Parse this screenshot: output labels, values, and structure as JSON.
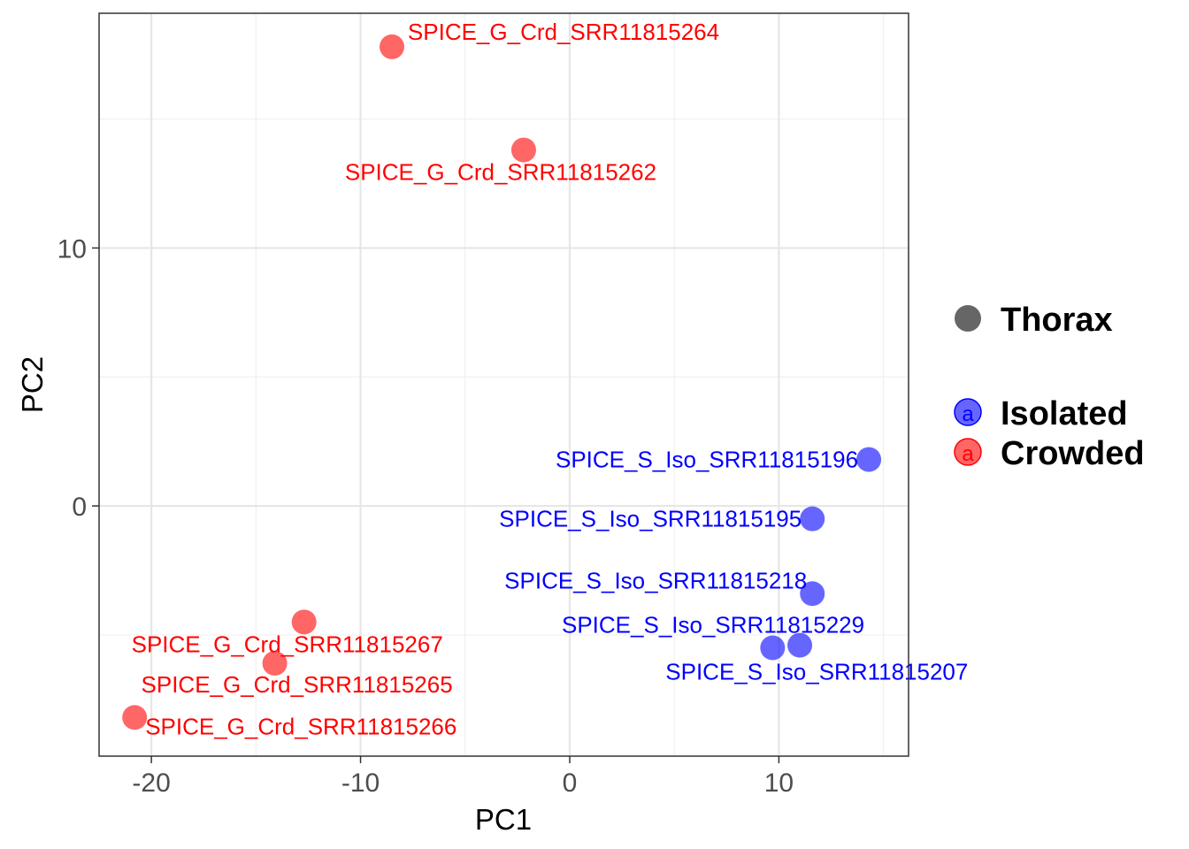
{
  "chart_data": {
    "type": "scatter",
    "title": "",
    "xlabel": "PC1",
    "ylabel": "PC2",
    "xlim": [
      -22.5,
      16.2
    ],
    "ylim": [
      -9.7,
      19.1
    ],
    "xticks": [
      -20,
      -10,
      0,
      10
    ],
    "yticks": [
      0,
      10
    ],
    "grid": true,
    "colors": {
      "Isolated": "#0000ff",
      "Crowded": "#ff0000",
      "shape_key": "#666666"
    },
    "legend": {
      "position": "right",
      "shape_title": "Thorax",
      "color_entries": [
        {
          "key": "Isolated",
          "label": "Isolated",
          "glyph": "a"
        },
        {
          "key": "Crowded",
          "label": "Crowded",
          "glyph": "a"
        }
      ]
    },
    "series": [
      {
        "name": "Isolated",
        "points": [
          {
            "label": "SPICE_S_Iso_SRR11815196",
            "x": 14.3,
            "y": 1.8,
            "label_side": "left"
          },
          {
            "label": "SPICE_S_Iso_SRR11815195",
            "x": 11.6,
            "y": -0.5,
            "label_side": "left"
          },
          {
            "label": "SPICE_S_Iso_SRR11815218",
            "x": 11.6,
            "y": -3.4,
            "label_side": "left-up"
          },
          {
            "label": "SPICE_S_Iso_SRR11815229",
            "x": 11.0,
            "y": -5.4,
            "label_side": "above"
          },
          {
            "label": "SPICE_S_Iso_SRR11815207",
            "x": 9.7,
            "y": -5.5,
            "label_side": "below"
          }
        ]
      },
      {
        "name": "Crowded",
        "points": [
          {
            "label": "SPICE_G_Crd_SRR11815264",
            "x": -8.5,
            "y": 17.8,
            "label_side": "above"
          },
          {
            "label": "SPICE_G_Crd_SRR11815262",
            "x": -2.2,
            "y": 13.8,
            "label_side": "below"
          },
          {
            "label": "SPICE_G_Crd_SRR11815267",
            "x": -12.7,
            "y": -4.5,
            "label_side": "below"
          },
          {
            "label": "SPICE_G_Crd_SRR11815265",
            "x": -14.1,
            "y": -6.1,
            "label_side": "below"
          },
          {
            "label": "SPICE_G_Crd_SRR11815266",
            "x": -20.8,
            "y": -8.2,
            "label_side": "right"
          }
        ]
      }
    ]
  }
}
